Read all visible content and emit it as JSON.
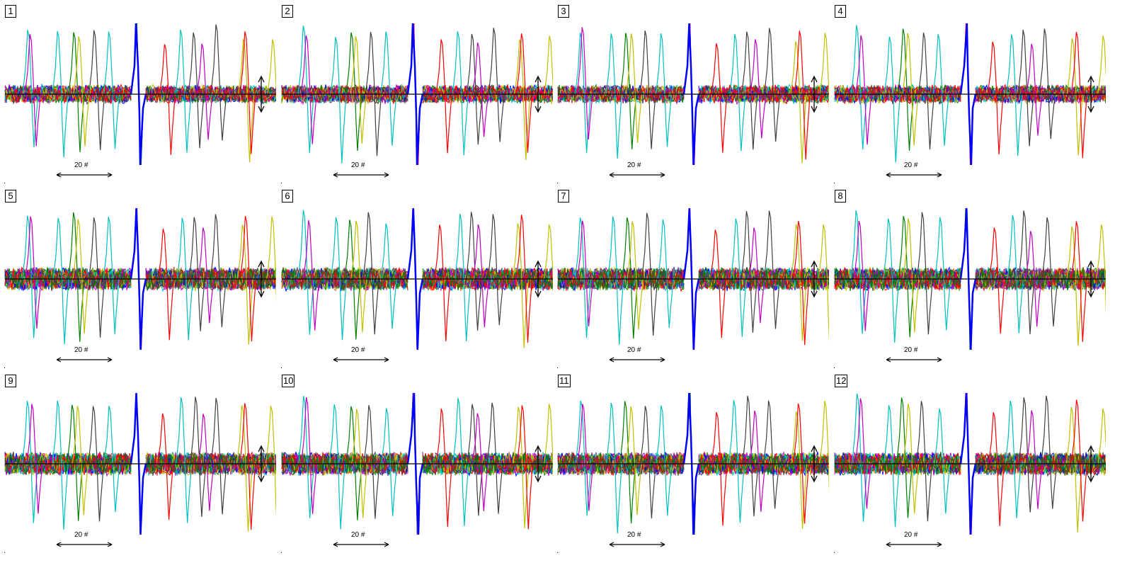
{
  "chart_data": {
    "type": "line",
    "title": "",
    "description_units": "overlaid waveform traces, 12 channels",
    "panels": [
      {
        "label": "1"
      },
      {
        "label": "2"
      },
      {
        "label": "3"
      },
      {
        "label": "4"
      },
      {
        "label": "5"
      },
      {
        "label": "6"
      },
      {
        "label": "7"
      },
      {
        "label": "8"
      },
      {
        "label": "9"
      },
      {
        "label": "10"
      },
      {
        "label": "11"
      },
      {
        "label": "12"
      }
    ],
    "scale_bar": {
      "value": 20,
      "label": "20 #"
    },
    "spike_events": [
      {
        "t": 40,
        "color": "#00c0c0",
        "up": 95,
        "down": 80
      },
      {
        "t": 44,
        "color": "#c000c0",
        "up": 90,
        "down": 70
      },
      {
        "t": 84,
        "color": "#00c0c0",
        "up": 85,
        "down": 95
      },
      {
        "t": 104,
        "color": "#008000",
        "up": 90,
        "down": 85
      },
      {
        "t": 112,
        "color": "#c0c000",
        "up": 85,
        "down": 75
      },
      {
        "t": 132,
        "color": "#404040",
        "up": 90,
        "down": 85
      },
      {
        "t": 155,
        "color": "#00c0c0",
        "up": 85,
        "down": 75
      },
      {
        "t": 232,
        "color": "#ff0000",
        "up": 75,
        "down": 85
      },
      {
        "t": 258,
        "color": "#00c0c0",
        "up": 90,
        "down": 85
      },
      {
        "t": 276,
        "color": "#404040",
        "up": 92,
        "down": 75
      },
      {
        "t": 286,
        "color": "#c000c0",
        "up": 75,
        "down": 65
      },
      {
        "t": 306,
        "color": "#404040",
        "up": 95,
        "down": 70
      },
      {
        "t": 343,
        "color": "#c0c000",
        "up": 80,
        "down": 95
      },
      {
        "t": 348,
        "color": "#ff0000",
        "up": 90,
        "down": 90
      },
      {
        "t": 385,
        "color": "#c0c000",
        "up": 85,
        "down": 100
      }
    ],
    "trace_colors": [
      "#ff0000",
      "#008000",
      "#0000ff",
      "#00c0c0",
      "#c000c0",
      "#c0c000",
      "#404040"
    ]
  }
}
